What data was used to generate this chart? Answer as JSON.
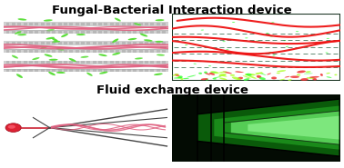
{
  "title1": "Fungal-Bacterial Interaction device",
  "title2": "Fluid exchange device",
  "title_fontsize": 9.5,
  "title_fontweight": "bold",
  "bg_color": "#ffffff",
  "fungal_color": "#e06080",
  "bacteria_color": "#55dd33",
  "nozzle_color": "#dd2233",
  "channel_wall_color": "#c8c8c8",
  "channel_wall_edge": "#aaaaaa"
}
